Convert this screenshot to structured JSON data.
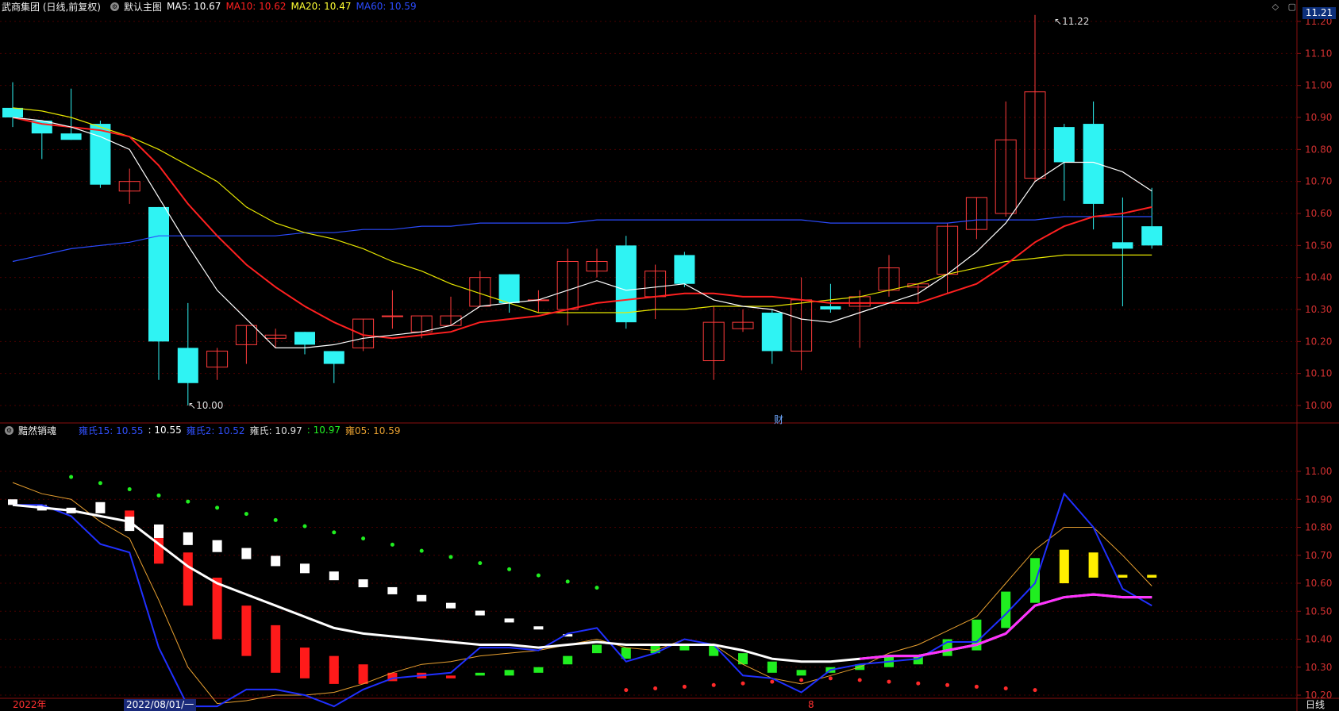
{
  "header": {
    "stock": "武商集团 (日线,前复权)",
    "main_chart": "默认主图",
    "ma": [
      {
        "label": "MA5: 10.67",
        "color": "#ffffff"
      },
      {
        "label": "MA10: 10.62",
        "color": "#ff2020"
      },
      {
        "label": "MA20: 10.47",
        "color": "#ffff33"
      },
      {
        "label": "MA60: 10.59",
        "color": "#2b4bff"
      }
    ]
  },
  "current_price": "11.21",
  "top_icons": [
    "diamond-icon",
    "window-icon",
    "close-icon"
  ],
  "price_axis": [
    "11.20",
    "11.10",
    "11.00",
    "10.90",
    "10.80",
    "10.70",
    "10.60",
    "10.50",
    "10.40",
    "10.30",
    "10.20",
    "10.10",
    "10.00"
  ],
  "annotations": {
    "high": "11.22",
    "low": "10.00",
    "finance_marker": "财"
  },
  "indicator": {
    "name": "黯然销魂",
    "items": [
      {
        "label": "雍氏15: 10.55",
        "color": "#3050ff"
      },
      {
        "label": ": 10.55",
        "color": "#ffffff"
      },
      {
        "label": "雍氏2: 10.52",
        "color": "#3050ff"
      },
      {
        "label": "雍氏: 10.97",
        "color": "#dddddd"
      },
      {
        "label": ": 10.97",
        "color": "#22ee22"
      },
      {
        "label": "雍05: 10.59",
        "color": "#e8a030"
      }
    ],
    "axis": [
      "11.00",
      "10.90",
      "10.80",
      "10.70",
      "10.60",
      "10.50",
      "10.40",
      "10.30",
      "10.20"
    ]
  },
  "bottom": {
    "year": "2022年",
    "date": "2022/08/01/一",
    "tick": "8",
    "period": "日线"
  },
  "chart_data": {
    "type": "candlestick",
    "candles": [
      [
        10.93,
        10.9,
        11.01,
        10.87
      ],
      [
        10.89,
        10.85,
        10.89,
        10.77
      ],
      [
        10.85,
        10.83,
        10.99,
        10.83
      ],
      [
        10.88,
        10.69,
        10.89,
        10.68
      ],
      [
        10.67,
        10.7,
        10.74,
        10.63
      ],
      [
        10.62,
        10.2,
        10.62,
        10.08
      ],
      [
        10.18,
        10.07,
        10.32,
        10.0
      ],
      [
        10.12,
        10.17,
        10.18,
        10.08
      ],
      [
        10.19,
        10.25,
        10.25,
        10.13
      ],
      [
        10.21,
        10.22,
        10.24,
        10.18
      ],
      [
        10.23,
        10.19,
        10.23,
        10.16
      ],
      [
        10.17,
        10.13,
        10.17,
        10.07
      ],
      [
        10.18,
        10.27,
        10.27,
        10.17
      ],
      [
        10.28,
        10.28,
        10.36,
        10.24
      ],
      [
        10.23,
        10.28,
        10.28,
        10.21
      ],
      [
        10.25,
        10.28,
        10.34,
        10.25
      ],
      [
        10.31,
        10.4,
        10.42,
        10.31
      ],
      [
        10.41,
        10.32,
        10.41,
        10.29
      ],
      [
        10.33,
        10.33,
        10.36,
        10.29
      ],
      [
        10.3,
        10.45,
        10.49,
        10.25
      ],
      [
        10.42,
        10.45,
        10.49,
        10.4
      ],
      [
        10.5,
        10.26,
        10.53,
        10.24
      ],
      [
        10.34,
        10.42,
        10.44,
        10.27
      ],
      [
        10.47,
        10.38,
        10.48,
        10.37
      ],
      [
        10.14,
        10.26,
        10.31,
        10.08
      ],
      [
        10.24,
        10.26,
        10.3,
        10.23
      ],
      [
        10.29,
        10.17,
        10.3,
        10.13
      ],
      [
        10.17,
        10.33,
        10.4,
        10.11
      ],
      [
        10.31,
        10.3,
        10.38,
        10.29
      ],
      [
        10.31,
        10.34,
        10.36,
        10.18
      ],
      [
        10.36,
        10.43,
        10.47,
        10.34
      ],
      [
        10.37,
        10.38,
        10.38,
        10.32
      ],
      [
        10.41,
        10.56,
        10.57,
        10.35
      ],
      [
        10.55,
        10.65,
        10.65,
        10.52
      ],
      [
        10.6,
        10.83,
        10.95,
        10.59
      ],
      [
        10.71,
        10.98,
        11.22,
        10.7
      ],
      [
        10.87,
        10.76,
        10.88,
        10.64
      ],
      [
        10.88,
        10.63,
        10.95,
        10.55
      ],
      [
        10.51,
        10.49,
        10.65,
        10.31
      ],
      [
        10.56,
        10.5,
        10.68,
        10.49
      ]
    ],
    "ma5": [
      10.9,
      10.89,
      10.87,
      10.84,
      10.8,
      10.65,
      10.5,
      10.36,
      10.27,
      10.18,
      10.18,
      10.19,
      10.21,
      10.22,
      10.23,
      10.25,
      10.31,
      10.32,
      10.33,
      10.36,
      10.39,
      10.36,
      10.37,
      10.38,
      10.33,
      10.31,
      10.3,
      10.27,
      10.26,
      10.29,
      10.32,
      10.35,
      10.41,
      10.48,
      10.57,
      10.7,
      10.76,
      10.76,
      10.73,
      10.67
    ],
    "ma10": [
      10.9,
      10.88,
      10.87,
      10.86,
      10.84,
      10.75,
      10.63,
      10.53,
      10.44,
      10.37,
      10.31,
      10.26,
      10.22,
      10.21,
      10.22,
      10.23,
      10.26,
      10.27,
      10.28,
      10.3,
      10.32,
      10.33,
      10.34,
      10.35,
      10.35,
      10.34,
      10.34,
      10.33,
      10.32,
      10.32,
      10.32,
      10.32,
      10.35,
      10.38,
      10.44,
      10.51,
      10.56,
      10.59,
      10.6,
      10.62
    ],
    "ma20": [
      10.93,
      10.92,
      10.9,
      10.87,
      10.84,
      10.8,
      10.75,
      10.7,
      10.62,
      10.57,
      10.54,
      10.52,
      10.49,
      10.45,
      10.42,
      10.38,
      10.35,
      10.32,
      10.29,
      10.29,
      10.29,
      10.29,
      10.3,
      10.3,
      10.31,
      10.31,
      10.31,
      10.32,
      10.33,
      10.34,
      10.36,
      10.38,
      10.41,
      10.43,
      10.45,
      10.46,
      10.47,
      10.47,
      10.47,
      10.47
    ],
    "ma60": [
      10.45,
      10.47,
      10.49,
      10.5,
      10.51,
      10.53,
      10.53,
      10.53,
      10.53,
      10.53,
      10.54,
      10.54,
      10.55,
      10.55,
      10.56,
      10.56,
      10.57,
      10.57,
      10.57,
      10.57,
      10.58,
      10.58,
      10.58,
      10.58,
      10.58,
      10.58,
      10.58,
      10.58,
      10.57,
      10.57,
      10.57,
      10.57,
      10.57,
      10.58,
      10.58,
      10.58,
      10.59,
      10.59,
      10.59,
      10.59
    ],
    "ind_white_line": [
      10.88,
      10.87,
      10.86,
      10.84,
      10.82,
      10.74,
      10.66,
      10.6,
      10.56,
      10.52,
      10.48,
      10.44,
      10.42,
      10.41,
      10.4,
      10.39,
      10.38,
      10.38,
      10.37,
      10.38,
      10.39,
      10.38,
      10.38,
      10.38,
      10.38,
      10.36,
      10.33,
      10.32,
      10.32,
      10.33,
      10.34,
      10.34,
      10.36,
      10.38,
      10.42,
      10.52,
      10.55,
      10.56,
      10.55,
      10.55
    ],
    "ind_blue_line": [
      10.88,
      10.88,
      10.84,
      10.74,
      10.71,
      10.37,
      10.16,
      10.16,
      10.22,
      10.22,
      10.2,
      10.16,
      10.22,
      10.26,
      10.27,
      10.28,
      10.37,
      10.37,
      10.36,
      10.42,
      10.44,
      10.32,
      10.35,
      10.4,
      10.38,
      10.27,
      10.26,
      10.21,
      10.29,
      10.31,
      10.32,
      10.33,
      10.39,
      10.39,
      10.49,
      10.6,
      10.92,
      10.8,
      10.58,
      10.52
    ],
    "ind_orange_line": [
      10.96,
      10.92,
      10.9,
      10.82,
      10.76,
      10.54,
      10.3,
      10.17,
      10.18,
      10.2,
      10.2,
      10.21,
      10.24,
      10.28,
      10.31,
      10.32,
      10.34,
      10.35,
      10.36,
      10.38,
      10.4,
      10.37,
      10.36,
      10.4,
      10.38,
      10.31,
      10.26,
      10.24,
      10.27,
      10.3,
      10.35,
      10.38,
      10.43,
      10.48,
      10.6,
      10.72,
      10.8,
      10.8,
      10.7,
      10.59
    ],
    "ind_bars": [
      [
        10.9,
        10.88
      ],
      [
        10.88,
        10.86
      ],
      [
        10.87,
        10.85
      ],
      [
        10.89,
        10.85
      ],
      [
        10.86,
        10.8
      ],
      [
        10.8,
        10.67
      ],
      [
        10.71,
        10.52
      ],
      [
        10.62,
        10.4
      ],
      [
        10.52,
        10.34
      ],
      [
        10.45,
        10.28
      ],
      [
        10.37,
        10.26
      ],
      [
        10.34,
        10.24
      ],
      [
        10.31,
        10.24
      ],
      [
        10.28,
        10.25
      ],
      [
        10.28,
        10.26
      ],
      [
        10.27,
        10.26
      ],
      [
        10.27,
        10.28
      ],
      [
        10.27,
        10.29
      ],
      [
        10.28,
        10.3
      ],
      [
        10.31,
        10.34
      ],
      [
        10.35,
        10.38
      ],
      [
        10.33,
        10.37
      ],
      [
        10.35,
        10.38
      ],
      [
        10.36,
        10.38
      ],
      [
        10.34,
        10.38
      ],
      [
        10.31,
        10.35
      ],
      [
        10.28,
        10.32
      ],
      [
        10.27,
        10.29
      ],
      [
        10.28,
        10.3
      ],
      [
        10.29,
        10.31
      ],
      [
        10.3,
        10.34
      ],
      [
        10.31,
        10.34
      ],
      [
        10.34,
        10.4
      ],
      [
        10.36,
        10.47
      ],
      [
        10.44,
        10.57
      ],
      [
        10.53,
        10.69
      ],
      [
        10.6,
        10.72
      ],
      [
        10.62,
        10.71
      ],
      [
        10.62,
        10.63
      ],
      [
        10.62,
        10.63
      ]
    ]
  }
}
